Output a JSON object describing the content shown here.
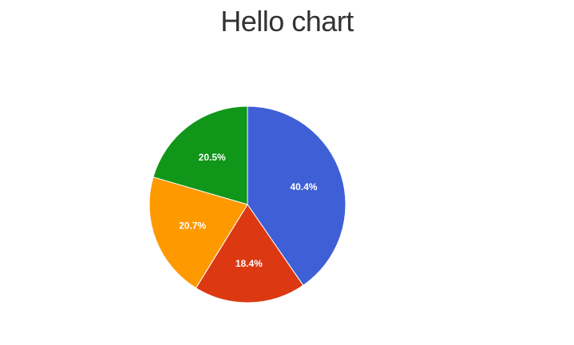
{
  "chart_data": {
    "type": "pie",
    "title": "Hello chart",
    "slices": [
      {
        "value": 40.4,
        "label": "40.4%",
        "color": "#3f5fd6"
      },
      {
        "value": 18.4,
        "label": "18.4%",
        "color": "#dc3912"
      },
      {
        "value": 20.7,
        "label": "20.7%",
        "color": "#ff9900"
      },
      {
        "value": 20.5,
        "label": "20.5%",
        "color": "#109618"
      }
    ],
    "start_angle_deg": 0,
    "direction": "clockwise"
  }
}
